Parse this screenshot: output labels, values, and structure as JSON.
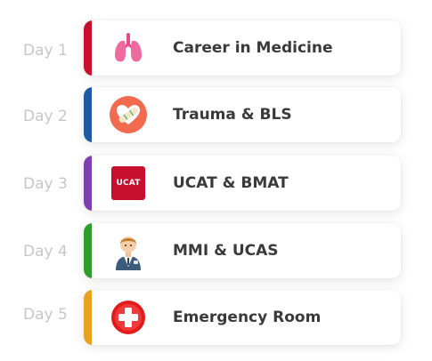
{
  "schedule": [
    {
      "day": "Day 1",
      "title": "Career in Medicine",
      "icon": "lungs-icon",
      "accent": "#c8102e"
    },
    {
      "day": "Day 2",
      "title": "Trauma & BLS",
      "icon": "heart-bandage-icon",
      "accent": "#1e5aa8"
    },
    {
      "day": "Day 3",
      "title": "UCAT & BMAT",
      "icon": "ucat-logo-icon",
      "accent": "#7d3fb2",
      "icon_text": "UCAT"
    },
    {
      "day": "Day 4",
      "title": "MMI & UCAS",
      "icon": "doctor-icon",
      "accent": "#2e9e2a"
    },
    {
      "day": "Day 5",
      "title": "Emergency Room",
      "icon": "medical-cross-icon",
      "accent": "#e8a21b"
    }
  ]
}
